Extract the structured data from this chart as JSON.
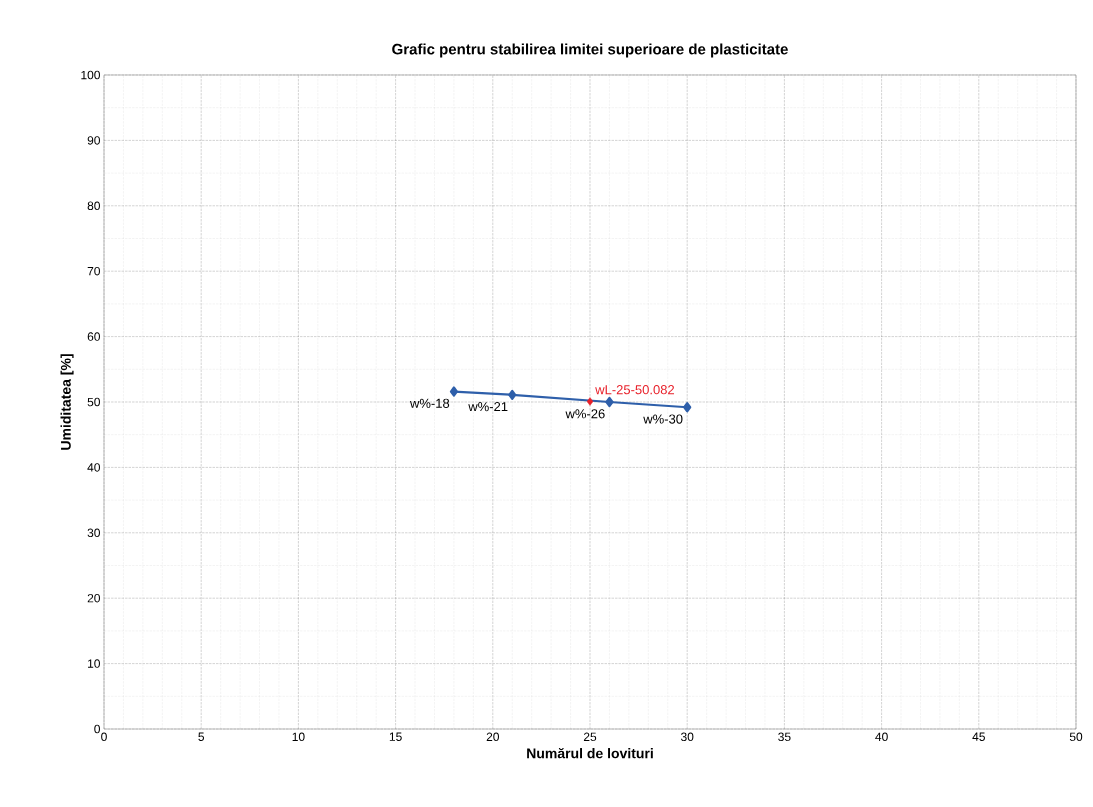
{
  "chart_data": {
    "type": "line",
    "title": "Grafic pentru stabilirea limitei superioare de plasticitate",
    "xlabel": "Numărul de lovituri",
    "ylabel": "Umiditatea [%]",
    "xlim": [
      0,
      50
    ],
    "xticks": [
      0,
      5,
      10,
      15,
      20,
      25,
      30,
      35,
      40,
      45,
      50
    ],
    "ylim": [
      0,
      100
    ],
    "yticks": [
      0,
      10,
      20,
      30,
      40,
      50,
      60,
      70,
      80,
      90,
      100
    ],
    "grid": true,
    "marker": "diamond",
    "line_style": "solid",
    "series": [
      {
        "color": "#2e5faa",
        "x": [
          18,
          21,
          26,
          30
        ],
        "values": [
          51.6,
          51.1,
          50.0,
          49.2
        ]
      },
      {
        "type": "scatter",
        "color": "#e8202a",
        "x": [
          25
        ],
        "values": [
          50.082
        ]
      }
    ],
    "annotations": [
      {
        "text": "w%-18",
        "x": 18,
        "y": 51.6
      },
      {
        "text": "w%-21",
        "x": 21,
        "y": 51.1
      },
      {
        "text": "w%-26",
        "x": 26,
        "y": 50.0
      },
      {
        "text": "w%-30",
        "x": 30,
        "y": 49.2
      },
      {
        "text": "wL-25-50.082",
        "x": 25,
        "y": 50.082
      }
    ]
  }
}
